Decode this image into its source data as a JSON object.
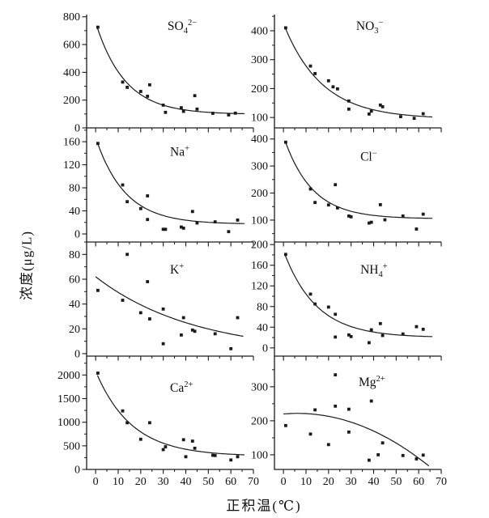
{
  "figure": {
    "background": "#ffffff",
    "ink_color": "#1a1a1a"
  },
  "chart_data": {
    "type": "scatter",
    "layout_note": "8 stacked panels, 4 rows x 2 cols, shared x axis, fitted decay curves",
    "xlabel": "正积温(℃)",
    "ylabel": "浓度(μg/L)",
    "xlim": [
      -4,
      70
    ],
    "xticks": [
      0,
      10,
      20,
      30,
      40,
      50,
      60,
      70
    ],
    "xminor_step": 5,
    "grid": false,
    "marker": "square",
    "panels": [
      {
        "id": "so4",
        "title_base": "SO",
        "title_sub": "4",
        "title_sup": "2−",
        "row": 0,
        "col": 0,
        "title_fx": 0.485,
        "title_fy": 0.1,
        "ylim": [
          0,
          816
        ],
        "yticks": [
          0,
          200,
          400,
          600,
          800
        ],
        "yminor_step": 100,
        "points": [
          [
            1,
            725
          ],
          [
            12,
            330
          ],
          [
            14,
            292
          ],
          [
            20,
            262
          ],
          [
            23,
            228
          ],
          [
            24,
            310
          ],
          [
            30,
            164
          ],
          [
            31,
            112
          ],
          [
            38,
            145
          ],
          [
            39,
            119
          ],
          [
            44,
            232
          ],
          [
            45,
            135
          ],
          [
            52,
            105
          ],
          [
            59,
            93
          ],
          [
            62,
            106
          ]
        ],
        "curve": {
          "type": "exp",
          "c": 98,
          "a": 660,
          "tau": 13,
          "x0": 0.8,
          "x1": 66
        }
      },
      {
        "id": "no3",
        "title_base": "NO",
        "title_sub": "3",
        "title_sup": "−",
        "row": 0,
        "col": 1,
        "title_fx": 0.49,
        "title_fy": 0.1,
        "ylim": [
          64,
          456
        ],
        "yticks": [
          100,
          200,
          300,
          400
        ],
        "yminor_step": 50,
        "points": [
          [
            1,
            410
          ],
          [
            12,
            278
          ],
          [
            14,
            252
          ],
          [
            20,
            227
          ],
          [
            22,
            206
          ],
          [
            24,
            199
          ],
          [
            29,
            157
          ],
          [
            29,
            129
          ],
          [
            38,
            112
          ],
          [
            39,
            122
          ],
          [
            43,
            143
          ],
          [
            44,
            137
          ],
          [
            52,
            103
          ],
          [
            58,
            97
          ],
          [
            62,
            113
          ]
        ],
        "curve": {
          "type": "exp",
          "c": 95,
          "a": 330,
          "tau": 17,
          "x0": 0.8,
          "x1": 66
        }
      },
      {
        "id": "na",
        "title_base": "Na",
        "title_sub": "",
        "title_sup": "+",
        "row": 1,
        "col": 0,
        "title_fx": 0.5,
        "title_fy": 0.21,
        "ylim": [
          -14,
          184
        ],
        "yticks": [
          0,
          40,
          80,
          120,
          160
        ],
        "yminor_step": 20,
        "points": [
          [
            1,
            157
          ],
          [
            12,
            85
          ],
          [
            14,
            56
          ],
          [
            20,
            44
          ],
          [
            23,
            66
          ],
          [
            23,
            25
          ],
          [
            30,
            8
          ],
          [
            31,
            8
          ],
          [
            38,
            12
          ],
          [
            39,
            10
          ],
          [
            43,
            39
          ],
          [
            45,
            19
          ],
          [
            53,
            21
          ],
          [
            59,
            4
          ],
          [
            63,
            24
          ]
        ],
        "curve": {
          "type": "exp",
          "c": 17,
          "a": 150,
          "tau": 13,
          "x0": 0.8,
          "x1": 66
        }
      },
      {
        "id": "cl",
        "title_base": "Cl",
        "title_sub": "",
        "title_sup": "−",
        "row": 1,
        "col": 1,
        "title_fx": 0.515,
        "title_fy": 0.25,
        "ylim": [
          19,
          441
        ],
        "yticks": [
          100,
          200,
          300,
          400
        ],
        "yminor_step": 50,
        "points": [
          [
            1,
            388
          ],
          [
            12,
            215
          ],
          [
            14,
            165
          ],
          [
            20,
            156
          ],
          [
            23,
            231
          ],
          [
            24,
            145
          ],
          [
            29,
            115
          ],
          [
            30,
            112
          ],
          [
            38,
            89
          ],
          [
            39,
            92
          ],
          [
            43,
            157
          ],
          [
            45,
            101
          ],
          [
            53,
            115
          ],
          [
            59,
            67
          ],
          [
            62,
            122
          ]
        ],
        "curve": {
          "type": "exp",
          "c": 105,
          "a": 305,
          "tau": 12.5,
          "x0": 0.8,
          "x1": 66
        }
      },
      {
        "id": "k",
        "title_base": "K",
        "title_sub": "",
        "title_sup": "+",
        "row": 2,
        "col": 0,
        "title_fx": 0.5,
        "title_fy": 0.24,
        "ylim": [
          -2,
          90
        ],
        "yticks": [
          0,
          20,
          40,
          60,
          80
        ],
        "yminor_step": 10,
        "points": [
          [
            1,
            51
          ],
          [
            12,
            43
          ],
          [
            14,
            80
          ],
          [
            20,
            33
          ],
          [
            23,
            58
          ],
          [
            24,
            28
          ],
          [
            30,
            36
          ],
          [
            30,
            8
          ],
          [
            38,
            15
          ],
          [
            39,
            29
          ],
          [
            43,
            19
          ],
          [
            44,
            18
          ],
          [
            53,
            16
          ],
          [
            60,
            4
          ],
          [
            63,
            29
          ]
        ],
        "curve": {
          "type": "exp",
          "c": 0,
          "a": 62,
          "tau": 44,
          "x0": 0,
          "x1": 65.5
        }
      },
      {
        "id": "nh4",
        "title_base": "NH",
        "title_sub": "4",
        "title_sup": "+",
        "row": 2,
        "col": 1,
        "title_fx": 0.515,
        "title_fy": 0.24,
        "ylim": [
          -16,
          205
        ],
        "yticks": [
          0,
          40,
          80,
          120,
          160,
          200
        ],
        "yminor_step": 20,
        "points": [
          [
            1,
            181
          ],
          [
            12,
            104
          ],
          [
            14,
            85
          ],
          [
            20,
            79
          ],
          [
            23,
            65
          ],
          [
            23,
            21
          ],
          [
            29,
            25
          ],
          [
            30,
            22
          ],
          [
            38,
            10
          ],
          [
            39,
            35
          ],
          [
            43,
            47
          ],
          [
            44,
            24
          ],
          [
            53,
            27
          ],
          [
            59,
            41
          ],
          [
            62,
            36
          ]
        ],
        "curve": {
          "type": "exp",
          "c": 20,
          "a": 168,
          "tau": 14.5,
          "x0": 0.8,
          "x1": 66
        }
      },
      {
        "id": "ca",
        "title_base": "Ca",
        "title_sub": "",
        "title_sup": "2+",
        "row": 3,
        "col": 0,
        "title_fx": 0.5,
        "title_fy": 0.28,
        "ylim": [
          0,
          2400
        ],
        "yticks": [
          0,
          500,
          1000,
          1500,
          2000
        ],
        "yminor_step": 250,
        "points": [
          [
            1,
            2040
          ],
          [
            12,
            1240
          ],
          [
            14,
            990
          ],
          [
            20,
            640
          ],
          [
            24,
            990
          ],
          [
            30,
            420
          ],
          [
            31,
            480
          ],
          [
            39,
            630
          ],
          [
            40,
            270
          ],
          [
            43,
            600
          ],
          [
            44,
            450
          ],
          [
            52,
            300
          ],
          [
            53,
            295
          ],
          [
            60,
            200
          ],
          [
            63,
            270
          ]
        ],
        "curve": {
          "type": "exp",
          "c": 280,
          "a": 1800,
          "tau": 16,
          "x0": 0.8,
          "x1": 66
        }
      },
      {
        "id": "mg",
        "title_base": "Mg",
        "title_sub": "",
        "title_sup": "2+",
        "row": 3,
        "col": 1,
        "title_fx": 0.505,
        "title_fy": 0.23,
        "ylim": [
          57,
          390
        ],
        "yticks": [
          100,
          200,
          300
        ],
        "yminor_step": 50,
        "points": [
          [
            1,
            186
          ],
          [
            12,
            161
          ],
          [
            14,
            232
          ],
          [
            20,
            130
          ],
          [
            23,
            335
          ],
          [
            23,
            243
          ],
          [
            29,
            234
          ],
          [
            29,
            167
          ],
          [
            38,
            84
          ],
          [
            39,
            258
          ],
          [
            42,
            100
          ],
          [
            44,
            135
          ],
          [
            53,
            98
          ],
          [
            59,
            88
          ],
          [
            62,
            99
          ]
        ],
        "curve": {
          "type": "poly",
          "a": 220,
          "b": 0.56,
          "c2": -0.0454,
          "x0": 0,
          "x1": 64.5
        }
      }
    ]
  }
}
